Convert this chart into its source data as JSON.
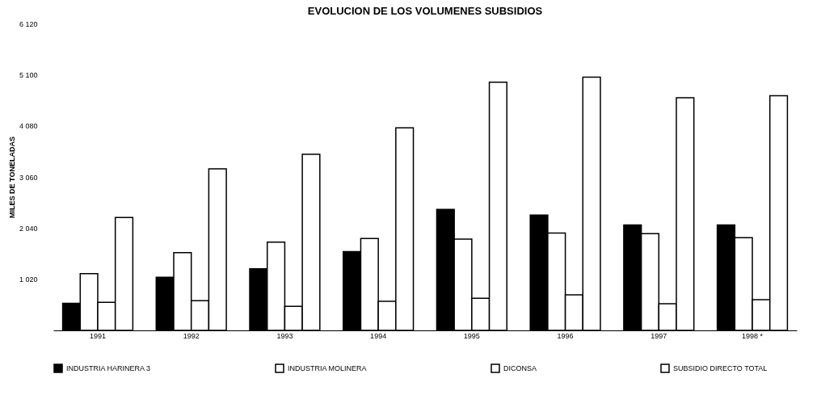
{
  "chart_data": {
    "type": "bar",
    "title": "EVOLUCION DE LOS VOLUMENES SUBSIDIOS",
    "ylabel": "MILES DE TONELADAS",
    "categories": [
      "1991",
      "1992",
      "1993",
      "1994",
      "1995",
      "1996",
      "1997",
      "1998 *"
    ],
    "series": [
      {
        "name": "INDUSTRIA HARINERA 3",
        "color": "#000000",
        "values": [
          540,
          1060,
          1230,
          1570,
          2410,
          2300,
          2100,
          2100
        ]
      },
      {
        "name": "INDUSTRIA MOLINERA",
        "color": "#ffffff",
        "values": [
          1130,
          1550,
          1760,
          1830,
          1820,
          1940,
          1930,
          1850
        ]
      },
      {
        "name": "DICONSA",
        "color": "#ffffff",
        "values": [
          560,
          590,
          480,
          580,
          640,
          710,
          530,
          610
        ]
      },
      {
        "name": "SUBSIDIO DIRECTO TOTAL",
        "color": "#ffffff",
        "values": [
          2250,
          3220,
          3510,
          4040,
          4950,
          5050,
          4640,
          4680
        ]
      }
    ],
    "ylim": [
      0,
      6120
    ],
    "yticks": [
      {
        "value": 0,
        "label": null
      },
      {
        "value": 1020,
        "label": "1 020"
      },
      {
        "value": 2040,
        "label": "2 040"
      },
      {
        "value": 3060,
        "label": "3 060"
      },
      {
        "value": 4080,
        "label": "4 080"
      },
      {
        "value": 5100,
        "label": "5 100"
      },
      {
        "value": 6120,
        "label": "6 120"
      }
    ],
    "grid": false,
    "legend": "bottom"
  }
}
